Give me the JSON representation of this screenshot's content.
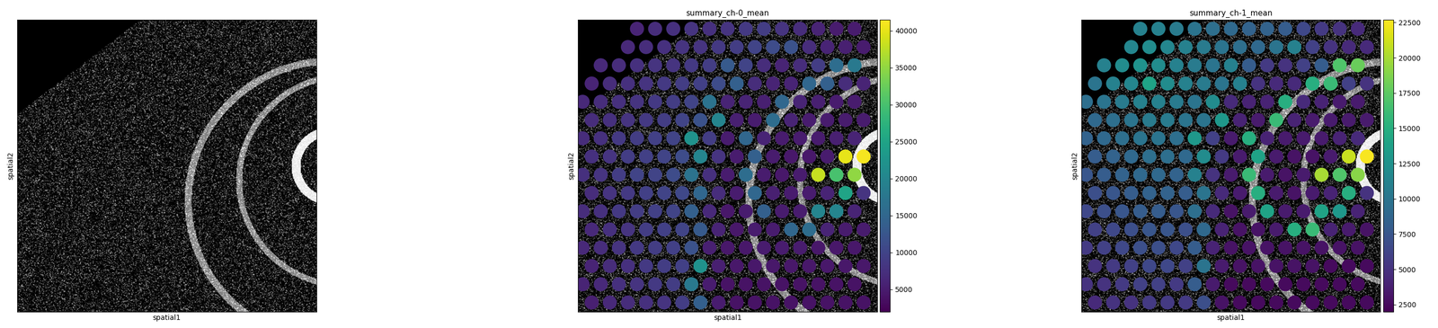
{
  "chart_data": [
    {
      "type": "image",
      "xlabel": "spatial1",
      "ylabel": "spatial2",
      "tick_labels": false
    },
    {
      "type": "scatter",
      "title": "summary_ch-0_mean",
      "xlabel": "spatial1",
      "ylabel": "spatial2",
      "tick_labels": false,
      "values": [
        [
          null,
          null,
          null,
          6000,
          7000,
          7500,
          8000,
          7500,
          8000,
          8500,
          9000,
          8000,
          7000,
          6000,
          5000,
          5000
        ],
        [
          null,
          null,
          6500,
          7000,
          7500,
          8000,
          8000,
          8500,
          9000,
          10000,
          11000,
          12000,
          7000,
          6000,
          5500,
          5000
        ],
        [
          null,
          6500,
          7000,
          7500,
          8000,
          8000,
          8500,
          9000,
          13000,
          10000,
          7000,
          6000,
          7000,
          9000,
          16000,
          18000
        ],
        [
          6000,
          7000,
          7500,
          8000,
          8500,
          9000,
          9500,
          11000,
          14000,
          7000,
          6000,
          6000,
          15000,
          14000,
          7000,
          6000
        ],
        [
          6500,
          7000,
          7500,
          8000,
          8500,
          9000,
          10000,
          17000,
          6000,
          6000,
          5500,
          15000,
          6000,
          5500,
          5000,
          5000
        ],
        [
          7000,
          7500,
          8000,
          8500,
          9000,
          10000,
          12000,
          20000,
          5500,
          5000,
          16000,
          6000,
          5000,
          5000,
          5000,
          5000
        ],
        [
          7000,
          7500,
          8500,
          9000,
          9500,
          10000,
          22000,
          9000,
          5000,
          15000,
          6000,
          5000,
          5000,
          5000,
          5500,
          6000
        ],
        [
          7500,
          8000,
          9000,
          9500,
          10000,
          11000,
          20000,
          8000,
          5000,
          14000,
          5000,
          4500,
          4500,
          5000,
          40000,
          41000
        ],
        [
          7500,
          8000,
          9000,
          10000,
          10000,
          11000,
          17000,
          7500,
          5000,
          16000,
          5000,
          4500,
          5000,
          38000,
          30000,
          35000
        ],
        [
          7000,
          8000,
          8500,
          9500,
          10000,
          10500,
          15000,
          7000,
          5000,
          15000,
          5500,
          5000,
          5000,
          6000,
          25000,
          8000
        ],
        [
          7000,
          7500,
          8500,
          9000,
          9500,
          10000,
          14000,
          6500,
          4500,
          5000,
          14000,
          5000,
          5000,
          20000,
          20000,
          6000
        ],
        [
          6500,
          7500,
          8000,
          9000,
          9500,
          10000,
          13000,
          6000,
          4500,
          5000,
          5000,
          15000,
          16000,
          6000,
          5000,
          5000
        ],
        [
          6500,
          7000,
          8000,
          8500,
          9000,
          9500,
          12000,
          5500,
          4500,
          4500,
          5000,
          5000,
          5000,
          4500,
          4500,
          4500
        ],
        [
          6000,
          7000,
          7500,
          8500,
          9000,
          9500,
          22000,
          5500,
          4500,
          4500,
          4500,
          4500,
          4500,
          4500,
          4500,
          4500
        ],
        [
          6000,
          6500,
          7500,
          8000,
          8500,
          9000,
          18000,
          5000,
          4000,
          4000,
          4000,
          4000,
          4000,
          4000,
          4000,
          4000
        ],
        [
          5500,
          6500,
          7000,
          7500,
          8000,
          9000,
          14000,
          5000,
          4000,
          4000,
          4000,
          4000,
          4000,
          4000,
          4000,
          4000
        ]
      ],
      "colorbar_range": [
        2000,
        41500
      ],
      "colorbar_ticks": [
        5000,
        10000,
        15000,
        20000,
        25000,
        30000,
        35000,
        40000
      ]
    },
    {
      "type": "scatter",
      "title": "summary_ch-1_mean",
      "xlabel": "spatial1",
      "ylabel": "spatial2",
      "tick_labels": false,
      "values": [
        [
          null,
          null,
          null,
          11000,
          11000,
          10500,
          10000,
          9500,
          9000,
          8500,
          8500,
          8000,
          6500,
          5500,
          5000,
          4500
        ],
        [
          null,
          null,
          11500,
          12000,
          11500,
          11000,
          10500,
          10000,
          9500,
          9000,
          10000,
          11000,
          6000,
          5000,
          4500,
          4500
        ],
        [
          null,
          11000,
          12000,
          12500,
          12000,
          11000,
          10500,
          10000,
          11000,
          8000,
          5500,
          5000,
          6000,
          8000,
          17000,
          18000
        ],
        [
          10000,
          11000,
          11500,
          14000,
          12000,
          11000,
          10500,
          10000,
          11000,
          5000,
          4500,
          4500,
          15000,
          16000,
          6000,
          5000
        ],
        [
          9500,
          10000,
          10500,
          11000,
          11000,
          10500,
          10000,
          12000,
          4500,
          4000,
          4000,
          15000,
          4500,
          4000,
          3500,
          3500
        ],
        [
          9000,
          9500,
          10000,
          10500,
          10500,
          10000,
          10000,
          13000,
          4000,
          3500,
          16000,
          4000,
          3500,
          3500,
          3500,
          3500
        ],
        [
          8500,
          9000,
          9500,
          10000,
          10000,
          9500,
          13000,
          6000,
          3500,
          15000,
          4000,
          3500,
          3500,
          3500,
          4000,
          4500
        ],
        [
          8000,
          8500,
          9000,
          9500,
          9500,
          9000,
          12000,
          5500,
          3500,
          14000,
          3500,
          3000,
          3000,
          3500,
          21000,
          22500
        ],
        [
          7500,
          8000,
          8500,
          9000,
          9000,
          8500,
          11000,
          5000,
          3500,
          16000,
          3500,
          3000,
          3500,
          20000,
          17000,
          19000
        ],
        [
          7000,
          7500,
          8000,
          8500,
          8500,
          8000,
          10000,
          4500,
          3500,
          15000,
          3500,
          3000,
          3500,
          4000,
          15000,
          5000
        ],
        [
          6500,
          7000,
          7500,
          8000,
          8000,
          7500,
          9500,
          4500,
          3000,
          3500,
          14000,
          3500,
          3500,
          14000,
          13000,
          4000
        ],
        [
          6000,
          6500,
          7000,
          7500,
          7500,
          7000,
          9000,
          4000,
          3000,
          3000,
          3500,
          15000,
          16000,
          4000,
          3500,
          3000
        ],
        [
          5500,
          6000,
          6500,
          7000,
          7000,
          6500,
          8000,
          4000,
          3000,
          3000,
          3000,
          3000,
          3000,
          3000,
          3000,
          3000
        ],
        [
          5000,
          5500,
          6000,
          6500,
          6500,
          6000,
          10000,
          3500,
          3000,
          3000,
          3000,
          3000,
          3000,
          2500,
          2500,
          2500
        ],
        [
          5000,
          5000,
          5500,
          6000,
          6000,
          5500,
          8000,
          3500,
          2500,
          2500,
          2500,
          2500,
          2500,
          2500,
          2500,
          2500
        ],
        [
          4500,
          5000,
          5000,
          5500,
          5500,
          5500,
          7000,
          3000,
          2500,
          2500,
          2500,
          2500,
          2500,
          2500,
          2500,
          2500
        ]
      ],
      "colorbar_range": [
        2000,
        22700
      ],
      "colorbar_ticks": [
        2500,
        5000,
        7500,
        10000,
        12500,
        15000,
        17500,
        20000,
        22500
      ]
    }
  ]
}
